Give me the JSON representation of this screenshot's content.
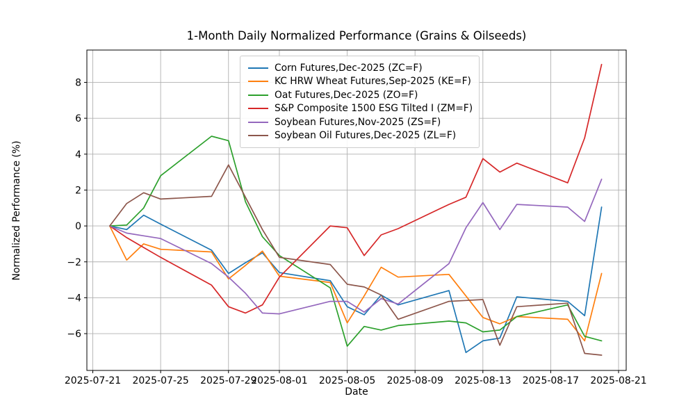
{
  "chart_data": {
    "type": "line",
    "title": "1-Month Daily Normalized Performance (Grains & Oilseeds)",
    "xlabel": "Date",
    "ylabel": "Normalized Performance (%)",
    "grid": true,
    "legend_position": "upper center",
    "x_dates": [
      "2025-07-22",
      "2025-07-23",
      "2025-07-24",
      "2025-07-25",
      "2025-07-28",
      "2025-07-29",
      "2025-07-30",
      "2025-07-31",
      "2025-08-01",
      "2025-08-04",
      "2025-08-05",
      "2025-08-06",
      "2025-08-07",
      "2025-08-08",
      "2025-08-11",
      "2025-08-12",
      "2025-08-13",
      "2025-08-14",
      "2025-08-15",
      "2025-08-18",
      "2025-08-19",
      "2025-08-20"
    ],
    "x_offsets_days_from_2025_07_21": [
      1,
      2,
      3,
      4,
      7,
      8,
      9,
      10,
      11,
      14,
      15,
      16,
      17,
      18,
      21,
      22,
      23,
      24,
      25,
      28,
      29,
      30
    ],
    "xlim_days": [
      -0.35,
      31.45
    ],
    "ylim": [
      -8.05,
      9.8
    ],
    "yticks": [
      {
        "label": "8",
        "value": 8
      },
      {
        "label": "6",
        "value": 6
      },
      {
        "label": "4",
        "value": 4
      },
      {
        "label": "2",
        "value": 2
      },
      {
        "label": "0",
        "value": 0
      },
      {
        "label": "−2",
        "value": -2
      },
      {
        "label": "−4",
        "value": -4
      },
      {
        "label": "−6",
        "value": -6
      }
    ],
    "xticks": [
      {
        "label": "2025-07-21",
        "day": 0
      },
      {
        "label": "2025-07-25",
        "day": 4
      },
      {
        "label": "2025-07-29",
        "day": 8
      },
      {
        "label": "2025-08-01",
        "day": 11
      },
      {
        "label": "2025-08-05",
        "day": 15
      },
      {
        "label": "2025-08-09",
        "day": 19
      },
      {
        "label": "2025-08-13",
        "day": 23
      },
      {
        "label": "2025-08-17",
        "day": 27
      },
      {
        "label": "2025-08-21",
        "day": 31
      }
    ],
    "series": [
      {
        "name": "Corn Futures,Dec-2025 (ZC=F)",
        "color": "#1f77b4",
        "values": [
          0,
          -0.2,
          0.6,
          0.1,
          -1.35,
          -2.65,
          -2.05,
          -1.5,
          -2.6,
          -3.05,
          -4.5,
          -4.95,
          -3.85,
          -4.4,
          -3.6,
          -7.05,
          -6.4,
          -6.25,
          -3.95,
          -4.2,
          -5.0,
          1.05
        ]
      },
      {
        "name": "KC HRW Wheat Futures,Sep-2025 (KE=F)",
        "color": "#ff7f0e",
        "values": [
          0,
          -1.9,
          -1.0,
          -1.3,
          -1.45,
          -2.95,
          -2.2,
          -1.4,
          -2.8,
          -3.15,
          -5.4,
          -3.9,
          -2.3,
          -2.85,
          -2.7,
          -3.9,
          -5.1,
          -5.45,
          -5.05,
          -5.2,
          -6.4,
          -2.65
        ]
      },
      {
        "name": "Oat Futures,Dec-2025 (ZO=F)",
        "color": "#2ca02c",
        "values": [
          0,
          0.05,
          1.0,
          2.8,
          5.0,
          4.75,
          1.35,
          -0.6,
          -1.65,
          -3.45,
          -6.7,
          -5.6,
          -5.8,
          -5.55,
          -5.3,
          -5.4,
          -5.9,
          -5.8,
          -5.05,
          -4.4,
          -6.15,
          -6.4
        ]
      },
      {
        "name": "S&P Composite 1500 ESG Tilted I (ZM=F)",
        "color": "#d62728",
        "values": [
          0,
          -0.65,
          -1.2,
          -1.75,
          -3.3,
          -4.5,
          -4.85,
          -4.4,
          -2.85,
          0.0,
          -0.1,
          -1.65,
          -0.5,
          -0.15,
          1.2,
          1.6,
          3.75,
          3.0,
          3.5,
          2.4,
          4.9,
          9.0
        ]
      },
      {
        "name": "Soybean Futures,Nov-2025 (ZS=F)",
        "color": "#9467bd",
        "values": [
          0,
          -0.4,
          -0.55,
          -0.7,
          -2.1,
          -2.85,
          -3.75,
          -4.85,
          -4.9,
          -4.2,
          -4.2,
          -4.8,
          -4.05,
          -4.35,
          -2.1,
          -0.1,
          1.3,
          -0.2,
          1.2,
          1.05,
          0.25,
          2.6
        ]
      },
      {
        "name": "Soybean Oil Futures,Dec-2025 (ZL=F)",
        "color": "#8c564b",
        "values": [
          0,
          1.25,
          1.85,
          1.5,
          1.65,
          3.4,
          1.6,
          -0.2,
          -1.75,
          -2.15,
          -3.25,
          -3.4,
          -3.85,
          -5.2,
          -4.2,
          -4.15,
          -4.1,
          -6.65,
          -4.5,
          -4.3,
          -7.1,
          -7.2
        ]
      }
    ],
    "grid_color": "#b0b0b0",
    "spine_color": "#000000"
  }
}
